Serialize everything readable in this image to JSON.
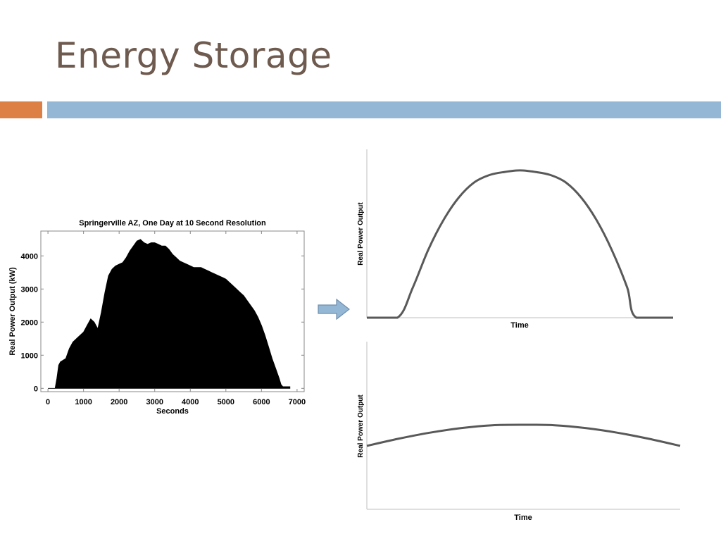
{
  "slide": {
    "title": "Energy Storage"
  },
  "colors": {
    "title": "#6e5a4e",
    "accent_orange": "#dd8046",
    "accent_blue": "#94b7d5",
    "curve": "#595959"
  },
  "arrow": {
    "icon": "right-arrow-icon",
    "fill": "#94b7d5",
    "stroke": "#6f8fad"
  },
  "chart_data": [
    {
      "type": "area",
      "title": "Springerville AZ, One Day at 10 Second Resolution",
      "xlabel": "Seconds",
      "ylabel": "Real Power Output (kW)",
      "xlim": [
        -200,
        7200
      ],
      "ylim": [
        -100,
        4750
      ],
      "xticks": [
        0,
        1000,
        2000,
        3000,
        4000,
        5000,
        6000,
        7000
      ],
      "yticks": [
        0,
        1000,
        2000,
        3000,
        4000
      ],
      "grid": false,
      "series": [
        {
          "values_description_omitted": false,
          "x": [
            0,
            200,
            250,
            300,
            350,
            500,
            600,
            700,
            800,
            900,
            1000,
            1100,
            1200,
            1300,
            1400,
            1500,
            1600,
            1700,
            1800,
            1900,
            2000,
            2100,
            2200,
            2300,
            2400,
            2500,
            2600,
            2700,
            2800,
            2900,
            3000,
            3100,
            3200,
            3300,
            3400,
            3500,
            3600,
            3700,
            3800,
            3900,
            4000,
            4100,
            4200,
            4300,
            4400,
            4500,
            4600,
            4700,
            4800,
            4900,
            5000,
            5100,
            5200,
            5300,
            5400,
            5500,
            5600,
            5700,
            5800,
            5900,
            6000,
            6100,
            6200,
            6300,
            6400,
            6500,
            6550,
            6600,
            6700,
            6800
          ],
          "y": [
            0,
            0,
            300,
            700,
            800,
            900,
            1200,
            1400,
            1500,
            1600,
            1700,
            1900,
            2100,
            2000,
            1800,
            2300,
            2900,
            3400,
            3600,
            3700,
            3750,
            3800,
            3950,
            4150,
            4300,
            4450,
            4500,
            4400,
            4350,
            4400,
            4400,
            4350,
            4300,
            4300,
            4200,
            4050,
            3950,
            3850,
            3800,
            3750,
            3700,
            3650,
            3650,
            3650,
            3600,
            3550,
            3500,
            3450,
            3400,
            3350,
            3300,
            3200,
            3100,
            3000,
            2900,
            2800,
            2650,
            2500,
            2350,
            2150,
            1900,
            1600,
            1250,
            900,
            600,
            300,
            120,
            50,
            50,
            50
          ]
        }
      ]
    },
    {
      "type": "line",
      "title": "",
      "xlabel": "Time",
      "ylabel": "Real Power Output",
      "xlim": [
        0,
        1
      ],
      "ylim": [
        0,
        1
      ],
      "series": [
        {
          "x": [
            0.0,
            0.1,
            0.15,
            0.2,
            0.25,
            0.3,
            0.35,
            0.4,
            0.45,
            0.5,
            0.55,
            0.6,
            0.65,
            0.7,
            0.75,
            0.8,
            0.85,
            0.88,
            1.0
          ],
          "y": [
            0.0,
            0.0,
            0.174,
            0.39,
            0.563,
            0.693,
            0.78,
            0.823,
            0.841,
            0.85,
            0.841,
            0.823,
            0.78,
            0.693,
            0.563,
            0.39,
            0.174,
            0.0,
            0.0
          ]
        }
      ]
    },
    {
      "type": "line",
      "title": "",
      "xlabel": "Time",
      "ylabel": "Real Power Output",
      "xlim": [
        0,
        1
      ],
      "ylim": [
        0,
        1
      ],
      "series": [
        {
          "x": [
            0.0,
            0.1,
            0.2,
            0.3,
            0.4,
            0.5,
            0.6,
            0.7,
            0.8,
            0.9,
            1.0
          ],
          "y": [
            0.375,
            0.417,
            0.453,
            0.48,
            0.497,
            0.5,
            0.497,
            0.48,
            0.453,
            0.417,
            0.375
          ]
        }
      ]
    }
  ]
}
